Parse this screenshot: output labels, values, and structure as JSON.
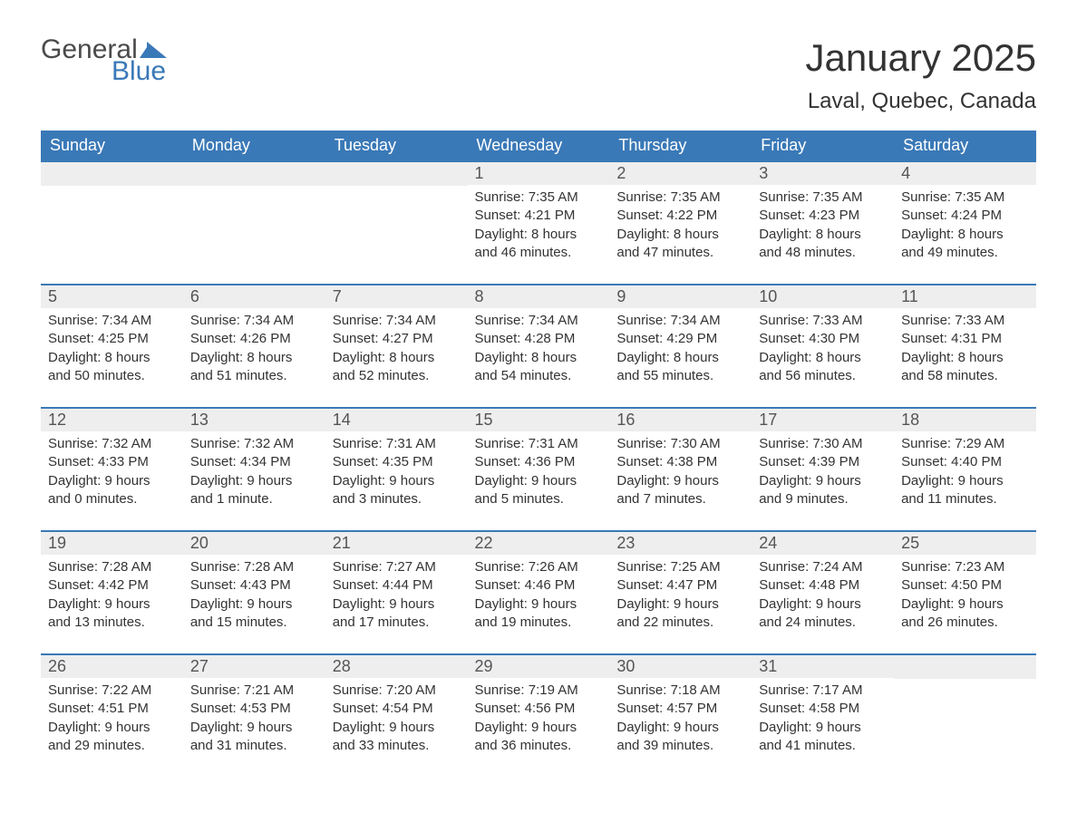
{
  "brand": {
    "word1": "General",
    "word2": "Blue",
    "flag_color": "#3a79b7"
  },
  "title": "January 2025",
  "location": "Laval, Quebec, Canada",
  "colors": {
    "header_bg": "#3a79b7",
    "header_text": "#ffffff",
    "daynum_bg": "#eeeeee",
    "daynum_text": "#555555",
    "body_text": "#333333",
    "row_border": "#3a79b7",
    "page_bg": "#ffffff"
  },
  "typography": {
    "title_fontsize": 42,
    "location_fontsize": 24,
    "header_fontsize": 18,
    "daynum_fontsize": 18,
    "body_fontsize": 15
  },
  "day_headers": [
    "Sunday",
    "Monday",
    "Tuesday",
    "Wednesday",
    "Thursday",
    "Friday",
    "Saturday"
  ],
  "weeks": [
    [
      null,
      null,
      null,
      {
        "n": "1",
        "sunrise": "Sunrise: 7:35 AM",
        "sunset": "Sunset: 4:21 PM",
        "d1": "Daylight: 8 hours",
        "d2": "and 46 minutes."
      },
      {
        "n": "2",
        "sunrise": "Sunrise: 7:35 AM",
        "sunset": "Sunset: 4:22 PM",
        "d1": "Daylight: 8 hours",
        "d2": "and 47 minutes."
      },
      {
        "n": "3",
        "sunrise": "Sunrise: 7:35 AM",
        "sunset": "Sunset: 4:23 PM",
        "d1": "Daylight: 8 hours",
        "d2": "and 48 minutes."
      },
      {
        "n": "4",
        "sunrise": "Sunrise: 7:35 AM",
        "sunset": "Sunset: 4:24 PM",
        "d1": "Daylight: 8 hours",
        "d2": "and 49 minutes."
      }
    ],
    [
      {
        "n": "5",
        "sunrise": "Sunrise: 7:34 AM",
        "sunset": "Sunset: 4:25 PM",
        "d1": "Daylight: 8 hours",
        "d2": "and 50 minutes."
      },
      {
        "n": "6",
        "sunrise": "Sunrise: 7:34 AM",
        "sunset": "Sunset: 4:26 PM",
        "d1": "Daylight: 8 hours",
        "d2": "and 51 minutes."
      },
      {
        "n": "7",
        "sunrise": "Sunrise: 7:34 AM",
        "sunset": "Sunset: 4:27 PM",
        "d1": "Daylight: 8 hours",
        "d2": "and 52 minutes."
      },
      {
        "n": "8",
        "sunrise": "Sunrise: 7:34 AM",
        "sunset": "Sunset: 4:28 PM",
        "d1": "Daylight: 8 hours",
        "d2": "and 54 minutes."
      },
      {
        "n": "9",
        "sunrise": "Sunrise: 7:34 AM",
        "sunset": "Sunset: 4:29 PM",
        "d1": "Daylight: 8 hours",
        "d2": "and 55 minutes."
      },
      {
        "n": "10",
        "sunrise": "Sunrise: 7:33 AM",
        "sunset": "Sunset: 4:30 PM",
        "d1": "Daylight: 8 hours",
        "d2": "and 56 minutes."
      },
      {
        "n": "11",
        "sunrise": "Sunrise: 7:33 AM",
        "sunset": "Sunset: 4:31 PM",
        "d1": "Daylight: 8 hours",
        "d2": "and 58 minutes."
      }
    ],
    [
      {
        "n": "12",
        "sunrise": "Sunrise: 7:32 AM",
        "sunset": "Sunset: 4:33 PM",
        "d1": "Daylight: 9 hours",
        "d2": "and 0 minutes."
      },
      {
        "n": "13",
        "sunrise": "Sunrise: 7:32 AM",
        "sunset": "Sunset: 4:34 PM",
        "d1": "Daylight: 9 hours",
        "d2": "and 1 minute."
      },
      {
        "n": "14",
        "sunrise": "Sunrise: 7:31 AM",
        "sunset": "Sunset: 4:35 PM",
        "d1": "Daylight: 9 hours",
        "d2": "and 3 minutes."
      },
      {
        "n": "15",
        "sunrise": "Sunrise: 7:31 AM",
        "sunset": "Sunset: 4:36 PM",
        "d1": "Daylight: 9 hours",
        "d2": "and 5 minutes."
      },
      {
        "n": "16",
        "sunrise": "Sunrise: 7:30 AM",
        "sunset": "Sunset: 4:38 PM",
        "d1": "Daylight: 9 hours",
        "d2": "and 7 minutes."
      },
      {
        "n": "17",
        "sunrise": "Sunrise: 7:30 AM",
        "sunset": "Sunset: 4:39 PM",
        "d1": "Daylight: 9 hours",
        "d2": "and 9 minutes."
      },
      {
        "n": "18",
        "sunrise": "Sunrise: 7:29 AM",
        "sunset": "Sunset: 4:40 PM",
        "d1": "Daylight: 9 hours",
        "d2": "and 11 minutes."
      }
    ],
    [
      {
        "n": "19",
        "sunrise": "Sunrise: 7:28 AM",
        "sunset": "Sunset: 4:42 PM",
        "d1": "Daylight: 9 hours",
        "d2": "and 13 minutes."
      },
      {
        "n": "20",
        "sunrise": "Sunrise: 7:28 AM",
        "sunset": "Sunset: 4:43 PM",
        "d1": "Daylight: 9 hours",
        "d2": "and 15 minutes."
      },
      {
        "n": "21",
        "sunrise": "Sunrise: 7:27 AM",
        "sunset": "Sunset: 4:44 PM",
        "d1": "Daylight: 9 hours",
        "d2": "and 17 minutes."
      },
      {
        "n": "22",
        "sunrise": "Sunrise: 7:26 AM",
        "sunset": "Sunset: 4:46 PM",
        "d1": "Daylight: 9 hours",
        "d2": "and 19 minutes."
      },
      {
        "n": "23",
        "sunrise": "Sunrise: 7:25 AM",
        "sunset": "Sunset: 4:47 PM",
        "d1": "Daylight: 9 hours",
        "d2": "and 22 minutes."
      },
      {
        "n": "24",
        "sunrise": "Sunrise: 7:24 AM",
        "sunset": "Sunset: 4:48 PM",
        "d1": "Daylight: 9 hours",
        "d2": "and 24 minutes."
      },
      {
        "n": "25",
        "sunrise": "Sunrise: 7:23 AM",
        "sunset": "Sunset: 4:50 PM",
        "d1": "Daylight: 9 hours",
        "d2": "and 26 minutes."
      }
    ],
    [
      {
        "n": "26",
        "sunrise": "Sunrise: 7:22 AM",
        "sunset": "Sunset: 4:51 PM",
        "d1": "Daylight: 9 hours",
        "d2": "and 29 minutes."
      },
      {
        "n": "27",
        "sunrise": "Sunrise: 7:21 AM",
        "sunset": "Sunset: 4:53 PM",
        "d1": "Daylight: 9 hours",
        "d2": "and 31 minutes."
      },
      {
        "n": "28",
        "sunrise": "Sunrise: 7:20 AM",
        "sunset": "Sunset: 4:54 PM",
        "d1": "Daylight: 9 hours",
        "d2": "and 33 minutes."
      },
      {
        "n": "29",
        "sunrise": "Sunrise: 7:19 AM",
        "sunset": "Sunset: 4:56 PM",
        "d1": "Daylight: 9 hours",
        "d2": "and 36 minutes."
      },
      {
        "n": "30",
        "sunrise": "Sunrise: 7:18 AM",
        "sunset": "Sunset: 4:57 PM",
        "d1": "Daylight: 9 hours",
        "d2": "and 39 minutes."
      },
      {
        "n": "31",
        "sunrise": "Sunrise: 7:17 AM",
        "sunset": "Sunset: 4:58 PM",
        "d1": "Daylight: 9 hours",
        "d2": "and 41 minutes."
      },
      null
    ]
  ]
}
